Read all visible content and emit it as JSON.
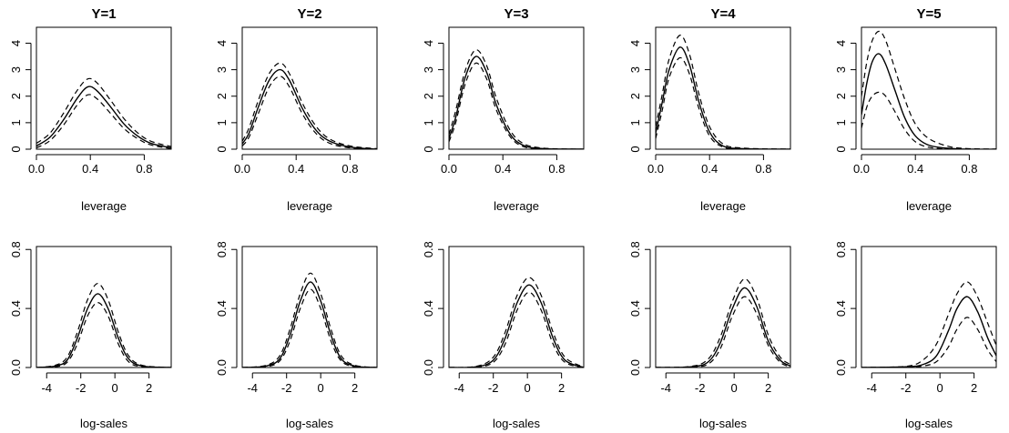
{
  "chart_data": [
    {
      "type": "line",
      "title": "Y=1",
      "xlabel": "leverage",
      "xlim": [
        0,
        1
      ],
      "ylim": [
        0,
        4.6
      ],
      "xticks": [
        0.0,
        0.4,
        0.8
      ],
      "xtick_labels": [
        "0.0",
        "0.4",
        "0.8"
      ],
      "yticks": [
        0,
        1,
        2,
        3,
        4
      ],
      "ytick_labels": [
        "0",
        "1",
        "2",
        "3",
        "4"
      ],
      "series": [
        {
          "style": "solid",
          "x": [
            0,
            0.1,
            0.2,
            0.3,
            0.38,
            0.45,
            0.55,
            0.65,
            0.75,
            0.85,
            1.0
          ],
          "y": [
            0.12,
            0.45,
            1.1,
            1.9,
            2.35,
            2.2,
            1.6,
            0.95,
            0.5,
            0.22,
            0.05
          ]
        },
        {
          "style": "dashed",
          "x": [
            0,
            0.1,
            0.2,
            0.3,
            0.38,
            0.45,
            0.55,
            0.65,
            0.75,
            0.85,
            1.0
          ],
          "y": [
            0.22,
            0.6,
            1.35,
            2.2,
            2.65,
            2.5,
            1.85,
            1.15,
            0.62,
            0.3,
            0.1
          ]
        },
        {
          "style": "dashed",
          "x": [
            0,
            0.1,
            0.2,
            0.3,
            0.38,
            0.45,
            0.55,
            0.65,
            0.75,
            0.85,
            1.0
          ],
          "y": [
            0.05,
            0.32,
            0.9,
            1.65,
            2.05,
            1.9,
            1.35,
            0.78,
            0.4,
            0.16,
            0.02
          ]
        }
      ]
    },
    {
      "type": "line",
      "title": "Y=2",
      "xlabel": "leverage",
      "xlim": [
        0,
        1
      ],
      "ylim": [
        0,
        4.6
      ],
      "xticks": [
        0.0,
        0.4,
        0.8
      ],
      "xtick_labels": [
        "0.0",
        "0.4",
        "0.8"
      ],
      "yticks": [
        0,
        1,
        2,
        3,
        4
      ],
      "ytick_labels": [
        "0",
        "1",
        "2",
        "3",
        "4"
      ],
      "series": [
        {
          "style": "solid",
          "x": [
            0,
            0.05,
            0.12,
            0.2,
            0.28,
            0.35,
            0.45,
            0.55,
            0.65,
            0.8,
            1.0
          ],
          "y": [
            0.2,
            0.6,
            1.6,
            2.6,
            3.0,
            2.6,
            1.5,
            0.7,
            0.3,
            0.08,
            0.0
          ]
        },
        {
          "style": "dashed",
          "x": [
            0,
            0.05,
            0.12,
            0.2,
            0.28,
            0.35,
            0.45,
            0.55,
            0.65,
            0.8,
            1.0
          ],
          "y": [
            0.3,
            0.8,
            1.85,
            2.85,
            3.25,
            2.85,
            1.7,
            0.85,
            0.38,
            0.12,
            0.02
          ]
        },
        {
          "style": "dashed",
          "x": [
            0,
            0.05,
            0.12,
            0.2,
            0.28,
            0.35,
            0.45,
            0.55,
            0.65,
            0.8,
            1.0
          ],
          "y": [
            0.12,
            0.45,
            1.35,
            2.35,
            2.75,
            2.35,
            1.3,
            0.58,
            0.22,
            0.05,
            0.0
          ]
        }
      ]
    },
    {
      "type": "line",
      "title": "Y=3",
      "xlabel": "leverage",
      "xlim": [
        0,
        1
      ],
      "ylim": [
        0,
        4.6
      ],
      "xticks": [
        0.0,
        0.4,
        0.8
      ],
      "xtick_labels": [
        "0.0",
        "0.4",
        "0.8"
      ],
      "yticks": [
        0,
        1,
        2,
        3,
        4
      ],
      "ytick_labels": [
        "0",
        "1",
        "2",
        "3",
        "4"
      ],
      "series": [
        {
          "style": "solid",
          "x": [
            0,
            0.05,
            0.12,
            0.2,
            0.28,
            0.35,
            0.45,
            0.55,
            0.7,
            1.0
          ],
          "y": [
            0.4,
            1.2,
            2.7,
            3.5,
            2.9,
            1.7,
            0.6,
            0.15,
            0.02,
            0.0
          ]
        },
        {
          "style": "dashed",
          "x": [
            0,
            0.05,
            0.12,
            0.2,
            0.28,
            0.35,
            0.45,
            0.55,
            0.7,
            1.0
          ],
          "y": [
            0.55,
            1.45,
            2.95,
            3.75,
            3.15,
            1.95,
            0.75,
            0.22,
            0.04,
            0.0
          ]
        },
        {
          "style": "dashed",
          "x": [
            0,
            0.05,
            0.12,
            0.2,
            0.28,
            0.35,
            0.45,
            0.55,
            0.7,
            1.0
          ],
          "y": [
            0.28,
            1.0,
            2.45,
            3.25,
            2.65,
            1.5,
            0.5,
            0.1,
            0.01,
            0.0
          ]
        }
      ]
    },
    {
      "type": "line",
      "title": "Y=4",
      "xlabel": "leverage",
      "xlim": [
        0,
        1
      ],
      "ylim": [
        0,
        4.6
      ],
      "xticks": [
        0.0,
        0.4,
        0.8
      ],
      "xtick_labels": [
        "0.0",
        "0.4",
        "0.8"
      ],
      "yticks": [
        0,
        1,
        2,
        3,
        4
      ],
      "ytick_labels": [
        "0",
        "1",
        "2",
        "3",
        "4"
      ],
      "series": [
        {
          "style": "solid",
          "x": [
            0,
            0.05,
            0.1,
            0.18,
            0.25,
            0.32,
            0.4,
            0.5,
            0.65,
            1.0
          ],
          "y": [
            0.6,
            1.8,
            3.0,
            3.85,
            3.2,
            1.8,
            0.65,
            0.12,
            0.02,
            0.0
          ]
        },
        {
          "style": "dashed",
          "x": [
            0,
            0.05,
            0.1,
            0.18,
            0.25,
            0.32,
            0.4,
            0.5,
            0.65,
            1.0
          ],
          "y": [
            0.85,
            2.1,
            3.4,
            4.3,
            3.6,
            2.1,
            0.85,
            0.2,
            0.04,
            0.0
          ]
        },
        {
          "style": "dashed",
          "x": [
            0,
            0.05,
            0.1,
            0.18,
            0.25,
            0.32,
            0.4,
            0.5,
            0.65,
            1.0
          ],
          "y": [
            0.4,
            1.5,
            2.7,
            3.45,
            2.85,
            1.55,
            0.5,
            0.08,
            0.01,
            0.0
          ]
        }
      ]
    },
    {
      "type": "line",
      "title": "Y=5",
      "xlabel": "leverage",
      "xlim": [
        0,
        1
      ],
      "ylim": [
        0,
        4.6
      ],
      "xticks": [
        0.0,
        0.4,
        0.8
      ],
      "xtick_labels": [
        "0.0",
        "0.4",
        "0.8"
      ],
      "yticks": [
        0,
        1,
        2,
        3,
        4
      ],
      "ytick_labels": [
        "0",
        "1",
        "2",
        "3",
        "4"
      ],
      "series": [
        {
          "style": "solid",
          "x": [
            0,
            0.04,
            0.08,
            0.13,
            0.18,
            0.25,
            0.32,
            0.4,
            0.5,
            0.65,
            0.8,
            1.0
          ],
          "y": [
            1.3,
            2.5,
            3.3,
            3.6,
            3.2,
            2.2,
            1.2,
            0.5,
            0.15,
            0.03,
            0.0,
            0.0
          ]
        },
        {
          "style": "dashed",
          "x": [
            0,
            0.04,
            0.08,
            0.13,
            0.18,
            0.25,
            0.32,
            0.4,
            0.5,
            0.65,
            0.8,
            1.0
          ],
          "y": [
            2.0,
            3.3,
            4.1,
            4.45,
            4.1,
            3.0,
            1.9,
            0.95,
            0.4,
            0.1,
            0.02,
            0.0
          ]
        },
        {
          "style": "dashed",
          "x": [
            0,
            0.04,
            0.08,
            0.13,
            0.18,
            0.25,
            0.32,
            0.4,
            0.5,
            0.65,
            0.8,
            1.0
          ],
          "y": [
            0.8,
            1.6,
            2.0,
            2.15,
            2.0,
            1.4,
            0.75,
            0.28,
            0.07,
            0.01,
            0.0,
            0.0
          ]
        }
      ]
    },
    {
      "type": "line",
      "title": "",
      "xlabel": "log-sales",
      "xlim": [
        -4.6,
        3.3
      ],
      "ylim": [
        0,
        0.82
      ],
      "xticks": [
        -4,
        -2,
        0,
        2
      ],
      "xtick_labels": [
        "-4",
        "-2",
        "0",
        "2"
      ],
      "yticks": [
        0.0,
        0.4,
        0.8
      ],
      "ytick_labels": [
        "0.0",
        "0.4",
        "0.8"
      ],
      "series": [
        {
          "style": "solid",
          "x": [
            -4.6,
            -3.5,
            -2.8,
            -2.2,
            -1.6,
            -1.0,
            -0.4,
            0.2,
            0.8,
            1.6,
            3.3
          ],
          "y": [
            0.0,
            0.01,
            0.05,
            0.2,
            0.4,
            0.5,
            0.4,
            0.2,
            0.06,
            0.01,
            0.0
          ]
        },
        {
          "style": "dashed",
          "x": [
            -4.6,
            -3.5,
            -2.8,
            -2.2,
            -1.6,
            -1.0,
            -0.4,
            0.2,
            0.8,
            1.6,
            3.3
          ],
          "y": [
            0.0,
            0.015,
            0.07,
            0.24,
            0.46,
            0.57,
            0.46,
            0.24,
            0.08,
            0.015,
            0.0
          ]
        },
        {
          "style": "dashed",
          "x": [
            -4.6,
            -3.5,
            -2.8,
            -2.2,
            -1.6,
            -1.0,
            -0.4,
            0.2,
            0.8,
            1.6,
            3.3
          ],
          "y": [
            0.0,
            0.005,
            0.035,
            0.16,
            0.35,
            0.44,
            0.35,
            0.16,
            0.04,
            0.005,
            0.0
          ]
        }
      ]
    },
    {
      "type": "line",
      "title": "",
      "xlabel": "log-sales",
      "xlim": [
        -4.6,
        3.3
      ],
      "ylim": [
        0,
        0.82
      ],
      "xticks": [
        -4,
        -2,
        0,
        2
      ],
      "xtick_labels": [
        "-4",
        "-2",
        "0",
        "2"
      ],
      "yticks": [
        0.0,
        0.4,
        0.8
      ],
      "ytick_labels": [
        "0.0",
        "0.4",
        "0.8"
      ],
      "series": [
        {
          "style": "solid",
          "x": [
            -4.6,
            -3.2,
            -2.4,
            -1.8,
            -1.2,
            -0.6,
            0.0,
            0.6,
            1.2,
            2.0,
            3.3
          ],
          "y": [
            0.0,
            0.01,
            0.06,
            0.22,
            0.45,
            0.58,
            0.45,
            0.22,
            0.06,
            0.01,
            0.0
          ]
        },
        {
          "style": "dashed",
          "x": [
            -4.6,
            -3.2,
            -2.4,
            -1.8,
            -1.2,
            -0.6,
            0.0,
            0.6,
            1.2,
            2.0,
            3.3
          ],
          "y": [
            0.0,
            0.015,
            0.08,
            0.26,
            0.5,
            0.64,
            0.5,
            0.26,
            0.08,
            0.015,
            0.0
          ]
        },
        {
          "style": "dashed",
          "x": [
            -4.6,
            -3.2,
            -2.4,
            -1.8,
            -1.2,
            -0.6,
            0.0,
            0.6,
            1.2,
            2.0,
            3.3
          ],
          "y": [
            0.0,
            0.005,
            0.045,
            0.18,
            0.4,
            0.53,
            0.4,
            0.18,
            0.045,
            0.005,
            0.0
          ]
        }
      ]
    },
    {
      "type": "line",
      "title": "",
      "xlabel": "log-sales",
      "xlim": [
        -4.6,
        3.3
      ],
      "ylim": [
        0,
        0.82
      ],
      "xticks": [
        -4,
        -2,
        0,
        2
      ],
      "xtick_labels": [
        "-4",
        "-2",
        "0",
        "2"
      ],
      "yticks": [
        0.0,
        0.4,
        0.8
      ],
      "ytick_labels": [
        "0.0",
        "0.4",
        "0.8"
      ],
      "series": [
        {
          "style": "solid",
          "x": [
            -4.6,
            -3.0,
            -2.0,
            -1.3,
            -0.6,
            0.1,
            0.8,
            1.5,
            2.2,
            3.3
          ],
          "y": [
            0.0,
            0.005,
            0.05,
            0.2,
            0.44,
            0.56,
            0.44,
            0.2,
            0.05,
            0.0
          ]
        },
        {
          "style": "dashed",
          "x": [
            -4.6,
            -3.0,
            -2.0,
            -1.3,
            -0.6,
            0.1,
            0.8,
            1.5,
            2.2,
            3.3
          ],
          "y": [
            0.0,
            0.008,
            0.07,
            0.24,
            0.49,
            0.61,
            0.49,
            0.24,
            0.07,
            0.002
          ]
        },
        {
          "style": "dashed",
          "x": [
            -4.6,
            -3.0,
            -2.0,
            -1.3,
            -0.6,
            0.1,
            0.8,
            1.5,
            2.2,
            3.3
          ],
          "y": [
            0.0,
            0.003,
            0.035,
            0.16,
            0.39,
            0.51,
            0.39,
            0.16,
            0.035,
            0.0
          ]
        }
      ]
    },
    {
      "type": "line",
      "title": "",
      "xlabel": "log-sales",
      "xlim": [
        -4.6,
        3.3
      ],
      "ylim": [
        0,
        0.82
      ],
      "xticks": [
        -4,
        -2,
        0,
        2
      ],
      "xtick_labels": [
        "-4",
        "-2",
        "0",
        "2"
      ],
      "yticks": [
        0.0,
        0.4,
        0.8
      ],
      "ytick_labels": [
        "0.0",
        "0.4",
        "0.8"
      ],
      "series": [
        {
          "style": "solid",
          "x": [
            -4.6,
            -2.5,
            -1.5,
            -0.8,
            -0.1,
            0.6,
            1.3,
            2.0,
            2.7,
            3.3
          ],
          "y": [
            0.0,
            0.005,
            0.04,
            0.17,
            0.4,
            0.54,
            0.42,
            0.18,
            0.05,
            0.01
          ]
        },
        {
          "style": "dashed",
          "x": [
            -4.6,
            -2.5,
            -1.5,
            -0.8,
            -0.1,
            0.6,
            1.3,
            2.0,
            2.7,
            3.3
          ],
          "y": [
            0.0,
            0.008,
            0.06,
            0.21,
            0.45,
            0.6,
            0.48,
            0.22,
            0.07,
            0.02
          ]
        },
        {
          "style": "dashed",
          "x": [
            -4.6,
            -2.5,
            -1.5,
            -0.8,
            -0.1,
            0.6,
            1.3,
            2.0,
            2.7,
            3.3
          ],
          "y": [
            0.0,
            0.003,
            0.025,
            0.13,
            0.35,
            0.48,
            0.37,
            0.15,
            0.035,
            0.005
          ]
        }
      ]
    },
    {
      "type": "line",
      "title": "",
      "xlabel": "log-sales",
      "xlim": [
        -4.6,
        3.3
      ],
      "ylim": [
        0,
        0.82
      ],
      "xticks": [
        -4,
        -2,
        0,
        2
      ],
      "xtick_labels": [
        "-4",
        "-2",
        "0",
        "2"
      ],
      "yticks": [
        0.0,
        0.4,
        0.8
      ],
      "ytick_labels": [
        "0.0",
        "0.4",
        "0.8"
      ],
      "series": [
        {
          "style": "solid",
          "x": [
            -4.6,
            -2.0,
            -1.0,
            -0.2,
            0.5,
            1.0,
            1.6,
            2.2,
            2.8,
            3.3
          ],
          "y": [
            0.0,
            0.005,
            0.02,
            0.08,
            0.25,
            0.4,
            0.48,
            0.38,
            0.2,
            0.08
          ]
        },
        {
          "style": "dashed",
          "x": [
            -4.6,
            -2.0,
            -1.0,
            -0.2,
            0.5,
            1.0,
            1.6,
            2.2,
            2.8,
            3.3
          ],
          "y": [
            0.0,
            0.008,
            0.05,
            0.16,
            0.36,
            0.5,
            0.58,
            0.48,
            0.3,
            0.15
          ]
        },
        {
          "style": "dashed",
          "x": [
            -4.6,
            -2.0,
            -1.0,
            -0.2,
            0.5,
            1.0,
            1.6,
            2.2,
            2.8,
            3.3
          ],
          "y": [
            0.0,
            0.002,
            0.01,
            0.04,
            0.14,
            0.26,
            0.34,
            0.26,
            0.12,
            0.04
          ]
        }
      ]
    }
  ]
}
